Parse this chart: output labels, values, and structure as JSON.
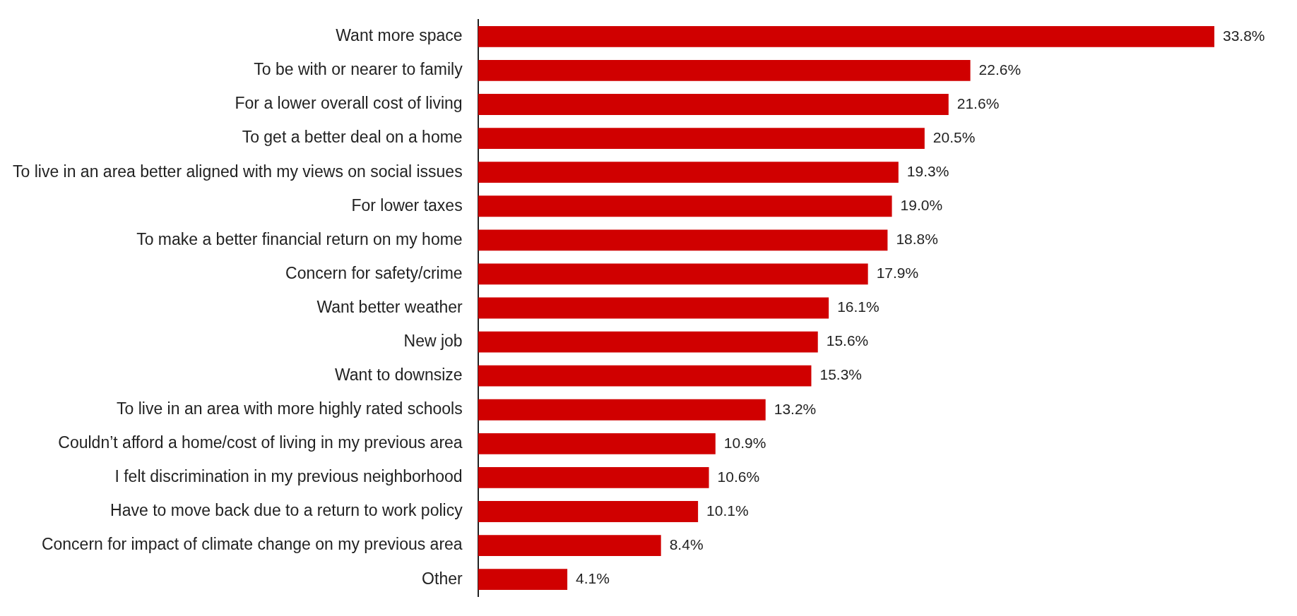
{
  "chart_data": {
    "type": "bar",
    "orientation": "horizontal",
    "categories": [
      "Want more space",
      "To be with or nearer to family",
      "For a lower overall cost of living",
      "To get a better deal on a home",
      "To live in an area better aligned with my views on social issues",
      "For lower taxes",
      "To make a better financial return on my home",
      "Concern for safety/crime",
      "Want better weather",
      "New job",
      "Want to downsize",
      "To live in an area with more highly rated schools",
      "Couldn’t afford a home/cost of living in my previous area",
      "I felt discrimination in my previous neighborhood",
      "Have to move back due to a return to work policy",
      "Concern for impact of climate change on my previous area",
      "Other"
    ],
    "values": [
      33.8,
      22.6,
      21.6,
      20.5,
      19.3,
      19.0,
      18.8,
      17.9,
      16.1,
      15.6,
      15.3,
      13.2,
      10.9,
      10.6,
      10.1,
      8.4,
      4.1
    ],
    "value_labels": [
      "33.8%",
      "22.6%",
      "21.6%",
      "20.5%",
      "19.3%",
      "19.0%",
      "18.8%",
      "17.9%",
      "16.1%",
      "15.6%",
      "15.3%",
      "13.2%",
      "10.9%",
      "10.6%",
      "10.1%",
      "8.4%",
      "4.1%"
    ],
    "color": "#d00000"
  }
}
